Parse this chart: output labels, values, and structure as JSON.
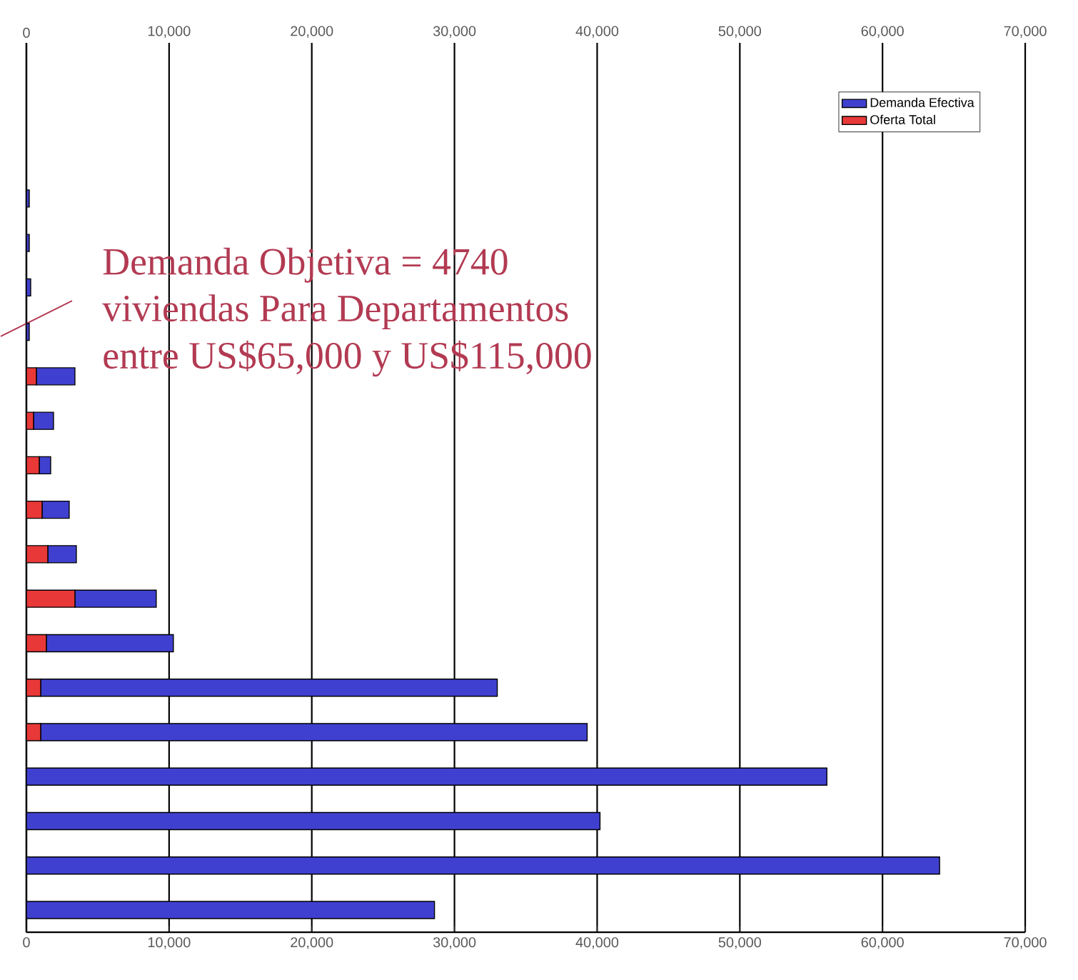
{
  "chart_data": {
    "type": "bar",
    "orientation": "horizontal",
    "stacked": true,
    "categories": [
      null,
      null,
      null,
      null,
      null,
      null,
      null,
      null,
      null,
      null,
      null,
      null,
      null,
      null,
      null,
      null,
      null,
      null,
      null,
      null
    ],
    "series": [
      {
        "name": "Oferta Total",
        "color": "#e83838",
        "values": [
          null,
          null,
          null,
          0,
          0,
          0,
          0,
          700,
          500,
          900,
          1100,
          1500,
          3400,
          1400,
          1000,
          1000,
          0,
          0,
          0,
          0
        ]
      },
      {
        "name": "Demanda Efectiva",
        "color": "#4040d0",
        "values": [
          null,
          null,
          null,
          200,
          200,
          300,
          200,
          2700,
          1400,
          800,
          1900,
          2000,
          5700,
          8900,
          32000,
          38300,
          56100,
          40200,
          64000,
          28600
        ]
      }
    ],
    "xlim": [
      0,
      70000
    ],
    "xticks": [
      0,
      {
        "value": 10000,
        "label": "10,000"
      },
      {
        "value": 20000,
        "label": "20,000"
      },
      {
        "value": 30000,
        "label": "30,000"
      },
      {
        "value": 40000,
        "label": "40,000"
      },
      {
        "value": 50000,
        "label": "50,000"
      },
      {
        "value": 60000,
        "label": "60,000"
      },
      {
        "value": 70000,
        "label": "70,000"
      }
    ],
    "x2lim": [
      0,
      70000
    ],
    "x2ticks": [
      0,
      {
        "value": 10000,
        "label": "10,000"
      },
      {
        "value": 20000,
        "label": "20,000"
      },
      {
        "value": 30000,
        "label": "30,000"
      },
      {
        "value": 40000,
        "label": "40,000"
      },
      {
        "value": 50000,
        "label": "50,000"
      },
      {
        "value": 60000,
        "label": "60,000"
      },
      {
        "value": 70000,
        "label": "70,000"
      }
    ],
    "grid": "x",
    "legend": "top right",
    "tick_labels": "x",
    "annotations": [
      "Demanda Objetiva = 4740",
      "viviendas Para Departamentos",
      "entre US$65,000 y US$115,000"
    ]
  }
}
